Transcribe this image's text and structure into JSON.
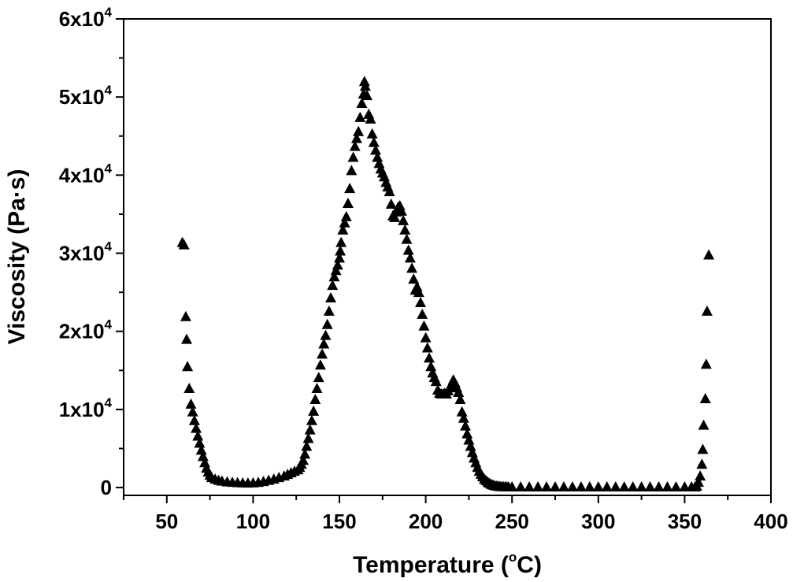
{
  "chart_data": {
    "type": "scatter",
    "title": "",
    "xlabel_main": "Temperature (",
    "xlabel_sup": "o",
    "xlabel_tail": "C)",
    "ylabel": "Viscosity (Pa·s)",
    "xlim": [
      25,
      400
    ],
    "ylim": [
      -1000,
      60000
    ],
    "xticks": [
      50,
      100,
      150,
      200,
      250,
      300,
      350,
      400
    ],
    "xtick_labels": [
      "50",
      "100",
      "150",
      "200",
      "250",
      "300",
      "350",
      "400"
    ],
    "yticks": [
      0,
      10000,
      20000,
      30000,
      40000,
      50000,
      60000
    ],
    "ytick_labels": [
      {
        "base": "0",
        "exp": ""
      },
      {
        "base": "1x10",
        "exp": "4"
      },
      {
        "base": "2x10",
        "exp": "4"
      },
      {
        "base": "3x10",
        "exp": "4"
      },
      {
        "base": "4x10",
        "exp": "4"
      },
      {
        "base": "5x10",
        "exp": "4"
      },
      {
        "base": "6x10",
        "exp": "4"
      }
    ],
    "marker": "filled-triangle",
    "marker_color": "#000000",
    "grid": false,
    "series": [
      {
        "name": "Viscosity",
        "points": [
          [
            59,
            31300
          ],
          [
            60,
            31000
          ],
          [
            61,
            21800
          ],
          [
            61.5,
            18900
          ],
          [
            62,
            15400
          ],
          [
            63,
            12600
          ],
          [
            64,
            10600
          ],
          [
            65,
            9600
          ],
          [
            66,
            8500
          ],
          [
            67,
            7500
          ],
          [
            68,
            6500
          ],
          [
            69,
            5600
          ],
          [
            70,
            4700
          ],
          [
            71,
            3900
          ],
          [
            72,
            3100
          ],
          [
            73,
            2400
          ],
          [
            74,
            1900
          ],
          [
            75,
            1500
          ],
          [
            76,
            1200
          ],
          [
            78,
            1000
          ],
          [
            80,
            850
          ],
          [
            82,
            750
          ],
          [
            85,
            650
          ],
          [
            88,
            600
          ],
          [
            91,
            550
          ],
          [
            94,
            520
          ],
          [
            97,
            500
          ],
          [
            100,
            520
          ],
          [
            103,
            580
          ],
          [
            106,
            700
          ],
          [
            109,
            850
          ],
          [
            112,
            1000
          ],
          [
            115,
            1200
          ],
          [
            118,
            1400
          ],
          [
            120,
            1600
          ],
          [
            122,
            1800
          ],
          [
            124,
            2000
          ],
          [
            126,
            2200
          ],
          [
            127,
            2500
          ],
          [
            128,
            2900
          ],
          [
            129,
            3400
          ],
          [
            130,
            4200
          ],
          [
            131,
            5200
          ],
          [
            132,
            6200
          ],
          [
            133,
            7300
          ],
          [
            134,
            8500
          ],
          [
            135,
            9700
          ],
          [
            136,
            11200
          ],
          [
            137,
            12600
          ],
          [
            138,
            14000
          ],
          [
            139,
            15600
          ],
          [
            140,
            17000
          ],
          [
            141,
            18300
          ],
          [
            142,
            19400
          ],
          [
            143,
            20800
          ],
          [
            144,
            22500
          ],
          [
            145,
            24200
          ],
          [
            146,
            25800
          ],
          [
            147,
            26900
          ],
          [
            148,
            27700
          ],
          [
            149,
            28400
          ],
          [
            150,
            29300
          ],
          [
            150.5,
            30200
          ],
          [
            151,
            31300
          ],
          [
            152,
            32900
          ],
          [
            153,
            33800
          ],
          [
            154,
            34600
          ],
          [
            155,
            36300
          ],
          [
            156,
            38200
          ],
          [
            157,
            40500
          ],
          [
            158,
            42200
          ],
          [
            159,
            43600
          ],
          [
            160,
            44600
          ],
          [
            161,
            45500
          ],
          [
            162,
            47300
          ],
          [
            163,
            49100
          ],
          [
            164,
            50300
          ],
          [
            164.5,
            51900
          ],
          [
            165,
            51300
          ],
          [
            166,
            50100
          ],
          [
            167,
            47700
          ],
          [
            168,
            47100
          ],
          [
            169,
            45200
          ],
          [
            170,
            44100
          ],
          [
            171,
            43100
          ],
          [
            172,
            42200
          ],
          [
            173,
            41400
          ],
          [
            174,
            40700
          ],
          [
            175,
            40200
          ],
          [
            176,
            39700
          ],
          [
            177,
            39000
          ],
          [
            178,
            38400
          ],
          [
            179,
            37800
          ],
          [
            180,
            36200
          ],
          [
            181,
            34700
          ],
          [
            182,
            34500
          ],
          [
            183,
            35200
          ],
          [
            184,
            35800
          ],
          [
            185,
            36000
          ],
          [
            186,
            35300
          ],
          [
            187,
            34100
          ],
          [
            188,
            32900
          ],
          [
            189,
            31700
          ],
          [
            190,
            30300
          ],
          [
            191,
            29300
          ],
          [
            192,
            28000
          ],
          [
            193,
            26600
          ],
          [
            194,
            25200
          ],
          [
            195,
            25600
          ],
          [
            196,
            24900
          ],
          [
            197,
            23600
          ],
          [
            198,
            22100
          ],
          [
            199,
            20600
          ],
          [
            200,
            19100
          ],
          [
            201,
            17800
          ],
          [
            202,
            16500
          ],
          [
            203,
            15400
          ],
          [
            204,
            14600
          ],
          [
            205,
            14000
          ],
          [
            206,
            13500
          ],
          [
            207,
            12400
          ],
          [
            208,
            12000
          ],
          [
            209,
            11900
          ],
          [
            210,
            11900
          ],
          [
            211,
            12000
          ],
          [
            212,
            11900
          ],
          [
            213,
            12300
          ],
          [
            214,
            12700
          ],
          [
            215,
            13200
          ],
          [
            216,
            13700
          ],
          [
            217,
            13300
          ],
          [
            218,
            12700
          ],
          [
            219,
            12100
          ],
          [
            220,
            11200
          ],
          [
            221,
            9600
          ],
          [
            222,
            8800
          ],
          [
            223,
            7800
          ],
          [
            224,
            6800
          ],
          [
            225,
            6000
          ],
          [
            226,
            5200
          ],
          [
            227,
            4400
          ],
          [
            228,
            3700
          ],
          [
            229,
            3100
          ],
          [
            230,
            2500
          ],
          [
            231,
            2000
          ],
          [
            232,
            1600
          ],
          [
            233,
            1300
          ],
          [
            234,
            1000
          ],
          [
            235,
            800
          ],
          [
            236,
            600
          ],
          [
            237,
            450
          ],
          [
            238,
            330
          ],
          [
            239,
            240
          ],
          [
            240,
            170
          ],
          [
            241,
            120
          ],
          [
            242,
            90
          ],
          [
            243,
            60
          ],
          [
            244,
            40
          ],
          [
            245,
            30
          ],
          [
            246,
            20
          ],
          [
            247,
            10
          ],
          [
            248,
            5
          ],
          [
            250,
            0
          ],
          [
            255,
            0
          ],
          [
            260,
            0
          ],
          [
            265,
            0
          ],
          [
            270,
            0
          ],
          [
            275,
            0
          ],
          [
            280,
            0
          ],
          [
            285,
            0
          ],
          [
            290,
            0
          ],
          [
            295,
            0
          ],
          [
            300,
            0
          ],
          [
            305,
            0
          ],
          [
            310,
            0
          ],
          [
            315,
            0
          ],
          [
            320,
            0
          ],
          [
            325,
            0
          ],
          [
            330,
            0
          ],
          [
            335,
            0
          ],
          [
            340,
            0
          ],
          [
            345,
            0
          ],
          [
            350,
            0
          ],
          [
            354,
            0
          ],
          [
            356,
            0
          ],
          [
            357,
            100
          ],
          [
            358,
            600
          ],
          [
            359,
            1400
          ],
          [
            360,
            2900
          ],
          [
            360.5,
            4800
          ],
          [
            361,
            7900
          ],
          [
            362,
            11300
          ],
          [
            362.5,
            15700
          ],
          [
            363,
            22500
          ],
          [
            364,
            29700
          ]
        ]
      }
    ]
  }
}
